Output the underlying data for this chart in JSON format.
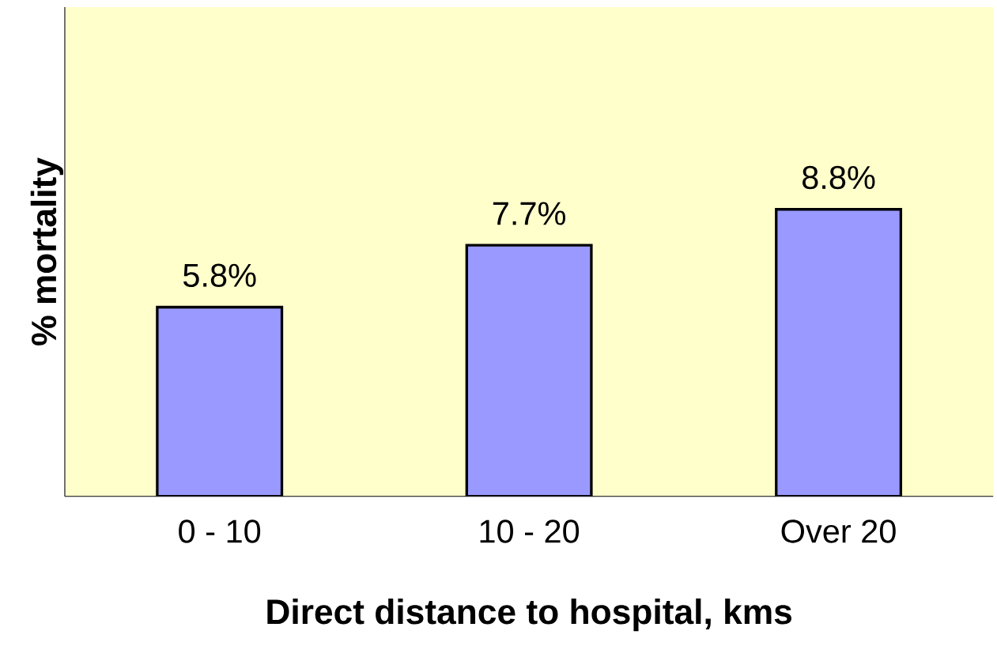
{
  "chart_data": {
    "type": "bar",
    "xlabel": "Direct distance to hospital, kms",
    "ylabel": "% mortality",
    "categories": [
      "0 - 10",
      "10 - 20",
      "Over 20"
    ],
    "values": [
      5.8,
      7.7,
      8.8
    ],
    "value_labels": [
      "5.8%",
      "7.7%",
      "8.8%"
    ],
    "color": "#9999ff",
    "ylim": [
      0,
      15
    ],
    "tick_labels": "x"
  }
}
